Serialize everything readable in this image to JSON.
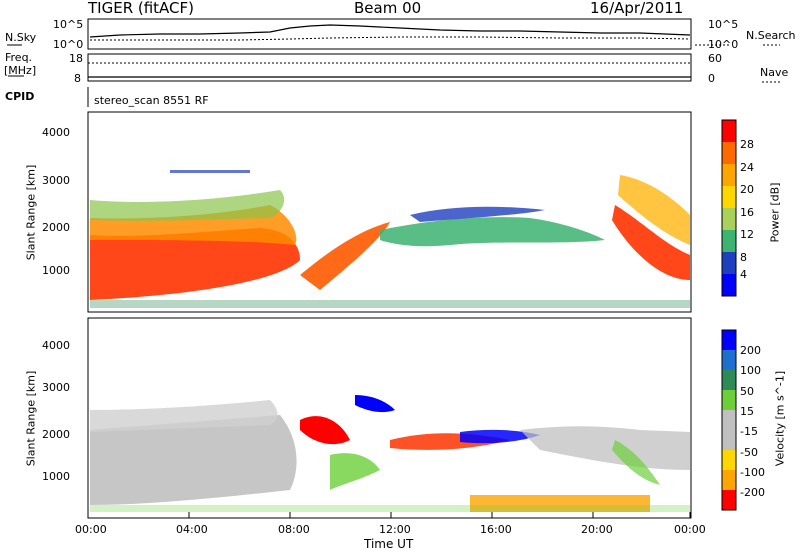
{
  "header": {
    "title": "TIGER (fitACF)",
    "beam": "Beam 00",
    "date": "16/Apr/2011"
  },
  "top_panel": {
    "left_label": "N.Sky",
    "right_label": "N.Search",
    "y_top": "10^5",
    "y_bottom": "10^0",
    "y_top_right": "10^5",
    "y_bottom_right": "10^0"
  },
  "freq_panel": {
    "left_label_1": "Freq.",
    "left_label_2": "[MHz]",
    "y_top_left": "18",
    "y_bottom_left": "8",
    "y_top_right": "60",
    "y_bottom_right": "0",
    "right_label": "Nave",
    "cpid_label": "CPID",
    "cpid_value": "stereo_scan 8551 RF"
  },
  "colors": {
    "power_scale": [
      "#0000ff",
      "#1f3fbf",
      "#2e8b57",
      "#3cb371",
      "#a8d05a",
      "#ffd700",
      "#ffa500",
      "#ff6a00",
      "#ff0000"
    ],
    "velocity_scale": [
      "#0000ff",
      "#1f6fd0",
      "#2e8b57",
      "#6ccf3a",
      "#c0c0c0",
      "#c0c0c0",
      "#ffd700",
      "#ffa500",
      "#ff0000"
    ]
  },
  "chart_data": [
    {
      "type": "heatmap",
      "name": "power",
      "ylabel": "Slant Range [km]",
      "y_ticks": [
        "4000",
        "3000",
        "2000",
        "1000"
      ],
      "ylim": [
        200,
        4600
      ],
      "colorbar_label": "Power [dB]",
      "colorbar_ticks": [
        "28",
        "24",
        "20",
        "16",
        "12",
        "8",
        "4"
      ],
      "colorbar_range": [
        0,
        32
      ]
    },
    {
      "type": "heatmap",
      "name": "velocity",
      "ylabel": "Slant Range [km]",
      "y_ticks": [
        "4000",
        "3000",
        "2000",
        "1000"
      ],
      "ylim": [
        200,
        4600
      ],
      "colorbar_label": "Velocity [m s^-1]",
      "colorbar_ticks": [
        "200",
        "100",
        "50",
        "15",
        "-15",
        "-50",
        "-100",
        "-200"
      ],
      "xlabel": "Time UT",
      "x_ticks": [
        "00:00",
        "04:00",
        "08:00",
        "12:00",
        "16:00",
        "20:00",
        "00:00"
      ],
      "xlim_hours": [
        0,
        24
      ]
    }
  ]
}
